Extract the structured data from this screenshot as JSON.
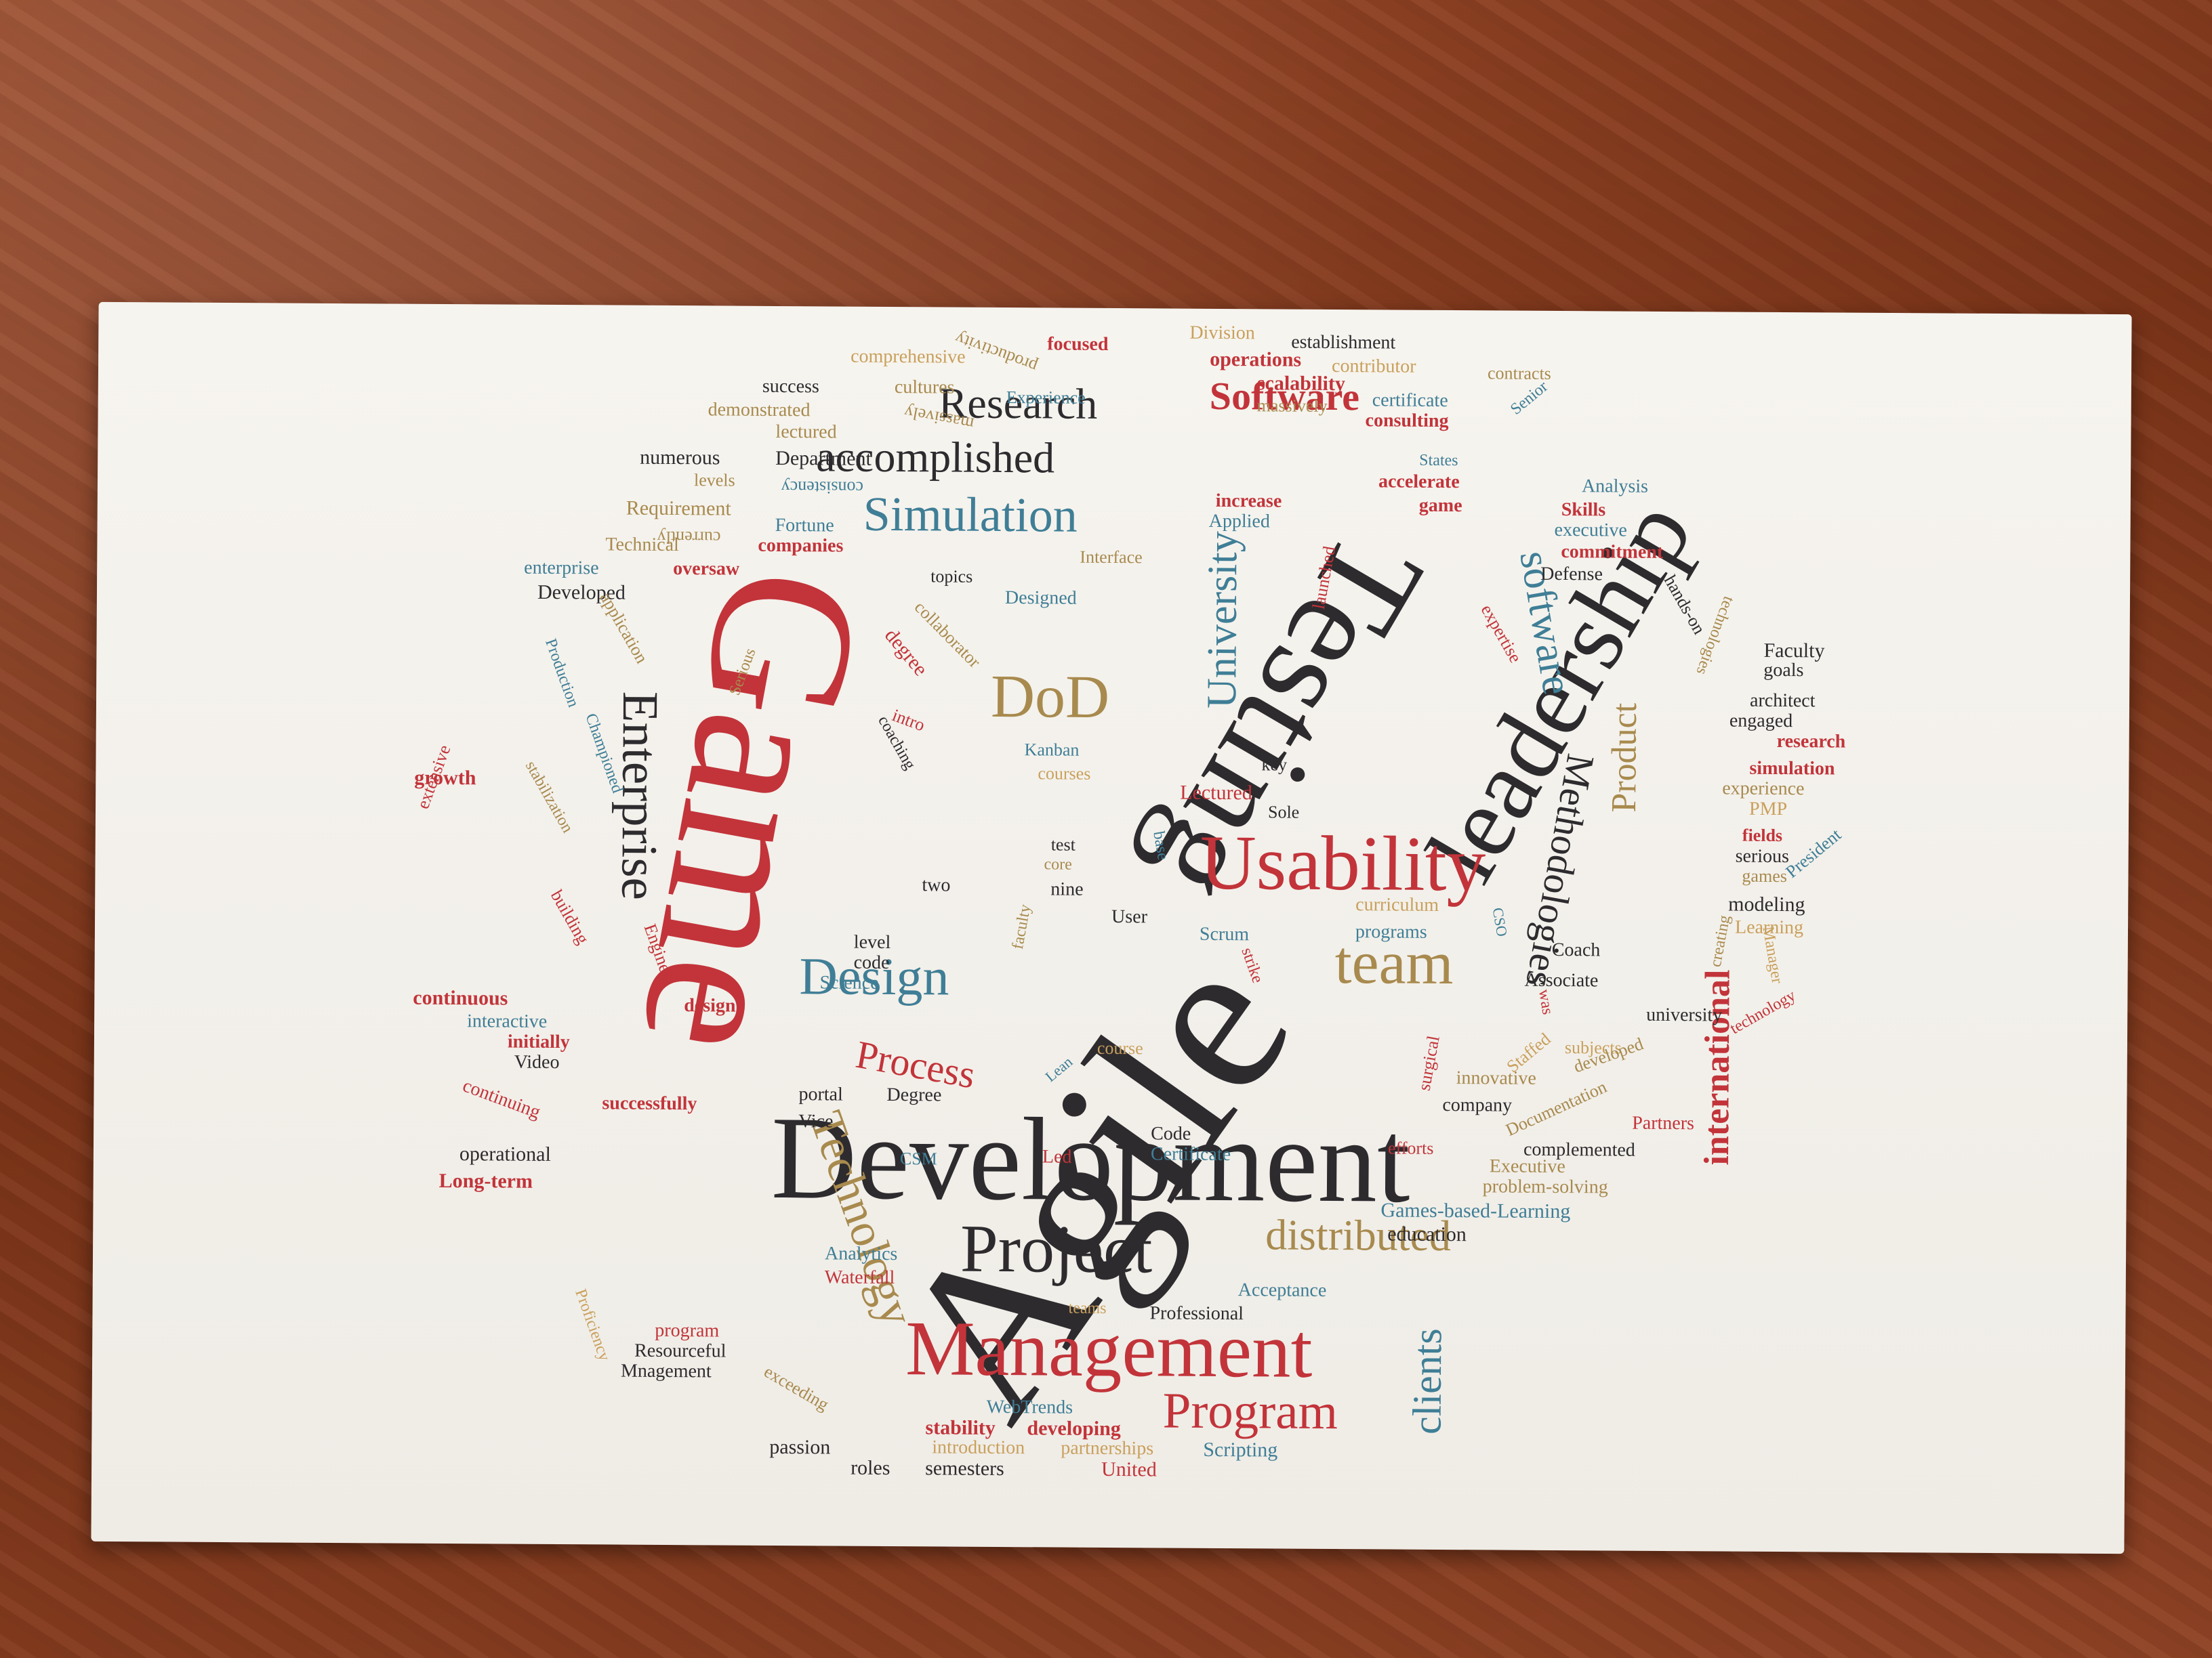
{
  "scene": "business card with word cloud on wooden desk",
  "colors": {
    "red": "#c2343a",
    "black": "#2d2b2e",
    "blue": "#3f7e96",
    "tan": "#a88a4e",
    "gold": "#c9a05c",
    "card": "#f4f2ed",
    "desk": "#8a3f22"
  },
  "words": {
    "agile": "Agile",
    "game": "Game",
    "development": "Development",
    "testing": "Testing",
    "leadership": "leadership",
    "usability": "Usability",
    "management": "Management",
    "project": "Project",
    "program": "Program",
    "design": "Design",
    "process": "Process",
    "enterprise": "Enterprise",
    "technology": "Technology",
    "simulation": "Simulation",
    "accomplished": "accomplished",
    "research": "Research",
    "software_cap": "Software",
    "software": "software",
    "dod": "DoD",
    "university": "University",
    "team": "team",
    "distributed": "distributed",
    "clients": "clients",
    "methodologies": "Methodologies",
    "international": "international",
    "product": "Product",
    "comprehensive": "comprehensive",
    "success": "success",
    "cultures": "cultures",
    "demonstrated": "demonstrated",
    "lectured": "lectured",
    "numerous": "numerous",
    "department": "Department",
    "levels": "levels",
    "consistency": "consistency",
    "requirement": "Requirement",
    "currently": "currently",
    "focused": "focused",
    "division": "Division",
    "establishment": "establishment",
    "operations": "operations",
    "contributor": "contributor",
    "scalability": "scalability",
    "contracts": "contracts",
    "certificate": "certificate",
    "massively": "massively",
    "consulting": "consulting",
    "experience_cap": "Experience",
    "senior": "Senior",
    "states": "States",
    "accelerate": "accelerate",
    "analysis": "Analysis",
    "increase": "increase",
    "game_small": "game",
    "skills": "Skills",
    "applied": "Applied",
    "executive_small": "executive",
    "commitment": "commitment",
    "fortune": "Fortune",
    "technical": "Technical",
    "companies": "companies",
    "interface": "Interface",
    "defense": "Defense",
    "enterprise_small": "enterprise",
    "oversaw": "oversaw",
    "topics": "topics",
    "developed_cap": "Developed",
    "designed": "Designed",
    "application": "application",
    "degree_small": "degree",
    "collaborator": "collaborator",
    "launched": "launched",
    "expertise": "expertise",
    "hands_on": "hands-on",
    "technologies": "technologies",
    "faculty_cap": "Faculty",
    "goals": "goals",
    "architect": "architect",
    "engaged": "engaged",
    "research_small": "research",
    "simulation_small": "simulation",
    "experience_small": "experience",
    "pmp": "PMP",
    "fields": "fields",
    "serious": "serious",
    "games": "games",
    "president": "President",
    "modeling": "modeling",
    "learning": "Learning",
    "manager": "Manager",
    "coach": "Coach",
    "associate": "Associate",
    "creating": "creating",
    "university_small": "university",
    "subjects": "subjects",
    "developed_small": "developed",
    "innovative": "innovative",
    "company": "company",
    "technology_small": "technology",
    "documentation": "Documentation",
    "partners": "Partners",
    "complemented": "complemented",
    "executive_cap": "Executive",
    "problem_solving": "problem-solving",
    "games_based_learning": "Games-based-Learning",
    "education": "education",
    "scripting": "Scripting",
    "united": "United",
    "partnerships": "partnerships",
    "semesters": "semesters",
    "introduction": "introduction",
    "roles": "roles",
    "passion": "passion",
    "stability": "stability",
    "developing": "developing",
    "webtrends": "WebTrends",
    "exceeding": "exceeding",
    "resourceful": "Resourceful",
    "mnagement": "Mnagement",
    "program_small": "program",
    "proficiency": "Proficiency",
    "waterfall": "Waterfall",
    "analytics": "Analytics",
    "teams": "teams",
    "acceptance": "Acceptance",
    "professional": "Professional",
    "long_term": "Long-term",
    "operational": "operational",
    "vice": "Vice",
    "csm": "CSM",
    "led": "Led",
    "certificate_cap": "Certificate",
    "code_cap": "Code",
    "efforts": "efforts",
    "surgical": "surgical",
    "staffed": "Staffed",
    "was": "was",
    "degree_cap": "Degree",
    "portal": "portal",
    "lean": "Lean",
    "course": "course",
    "video": "Video",
    "initially": "initially",
    "interactive": "interactive",
    "continuing": "continuing",
    "successfully": "successfully",
    "continuous": "continuous",
    "design_small": "design",
    "engine": "Engine",
    "building": "building",
    "science": "Science",
    "code_small": "code",
    "level": "level",
    "two": "two",
    "nine": "nine",
    "core": "core",
    "test": "test",
    "user": "User",
    "scrum": "Scrum",
    "strike": "strike",
    "programs": "programs",
    "curriculum": "curriculum",
    "cso": "CSO",
    "sole": "Sole",
    "lectured_cap": "Lectured",
    "base": "base",
    "key": "key",
    "courses": "courses",
    "kanban": "Kanban",
    "coaching": "coaching",
    "intro": "intro",
    "growth": "growth",
    "extensive": "extensive",
    "stabilization": "stabilization",
    "championed": "Championed",
    "serious_cap": "Serious",
    "production": "Production",
    "faculty_small": "faculty",
    "productivity": "productivity"
  }
}
